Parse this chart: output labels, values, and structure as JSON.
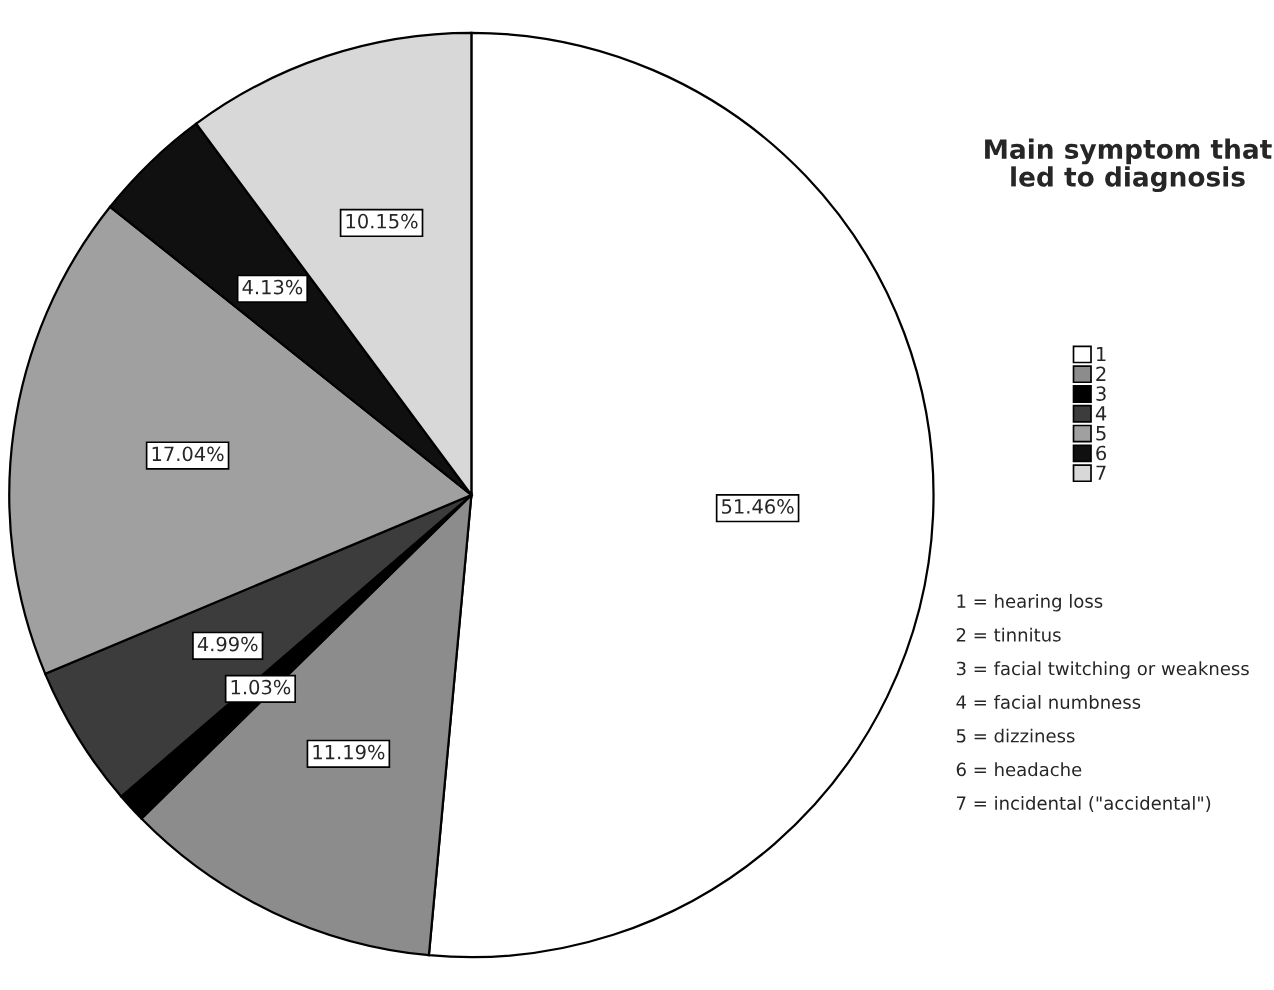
{
  "chart_data": {
    "type": "pie",
    "legend_title": "Main symptom that led to diagnosis",
    "categories": [
      "1",
      "2",
      "3",
      "4",
      "5",
      "6",
      "7"
    ],
    "values": [
      51.46,
      11.19,
      1.03,
      4.99,
      17.04,
      4.13,
      10.15
    ],
    "colors": [
      "#ffffff",
      "#8c8c8c",
      "#000000",
      "#3c3c3c",
      "#a0a0a0",
      "#101010",
      "#d8d8d8"
    ],
    "value_labels": [
      "51.46%",
      "11.19%",
      "1.03%",
      "4.99%",
      "17.04%",
      "4.13%",
      "10.15%"
    ],
    "legend": "right",
    "annotations": [
      "1 = hearing loss",
      "2 = tinnitus",
      "3 = facial twitching or weakness",
      "4 = facial numbness",
      "5 = dizziness",
      "6 = headache",
      "7 = incidental (\"accidental\")"
    ]
  }
}
